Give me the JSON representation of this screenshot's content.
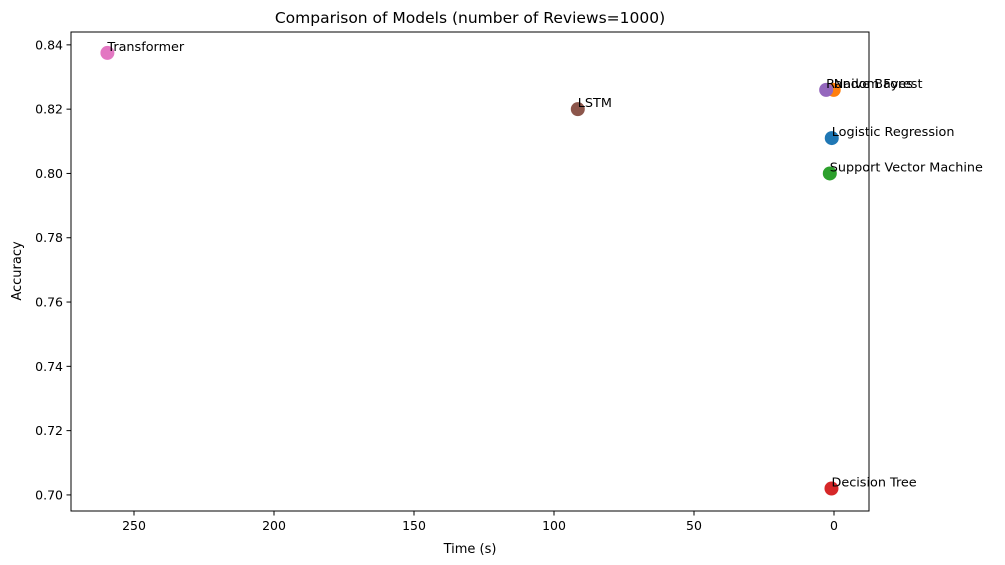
{
  "chart_data": {
    "type": "scatter",
    "title": "Comparison of Models (number of Reviews=1000)",
    "xlabel": "Time (s)",
    "ylabel": "Accuracy",
    "x_inverted": true,
    "xlim": [
      272.5,
      -12.5
    ],
    "ylim": [
      0.695,
      0.844
    ],
    "x_ticks": [
      250,
      200,
      150,
      100,
      50,
      0
    ],
    "y_ticks": [
      0.7,
      0.72,
      0.74,
      0.76,
      0.78,
      0.8,
      0.82,
      0.84
    ],
    "x_tick_labels": [
      "250",
      "200",
      "150",
      "100",
      "50",
      "0"
    ],
    "y_tick_labels": [
      "0.70",
      "0.72",
      "0.74",
      "0.76",
      "0.78",
      "0.80",
      "0.82",
      "0.84"
    ],
    "grid": false,
    "points": [
      {
        "label": "Logistic Regression",
        "x": 0.8,
        "y": 0.811,
        "color": "#1f77b4"
      },
      {
        "label": "Naive Bayes",
        "x": 0.1,
        "y": 0.826,
        "color": "#ff7f0e"
      },
      {
        "label": "Support Vector Machine",
        "x": 1.5,
        "y": 0.8,
        "color": "#2ca02c"
      },
      {
        "label": "Decision Tree",
        "x": 0.9,
        "y": 0.702,
        "color": "#d62728"
      },
      {
        "label": "Random Forest",
        "x": 2.8,
        "y": 0.826,
        "color": "#9467bd"
      },
      {
        "label": "LSTM",
        "x": 91.5,
        "y": 0.82,
        "color": "#8c564b"
      },
      {
        "label": "Transformer",
        "x": 259.5,
        "y": 0.8375,
        "color": "#e377c2"
      }
    ]
  }
}
